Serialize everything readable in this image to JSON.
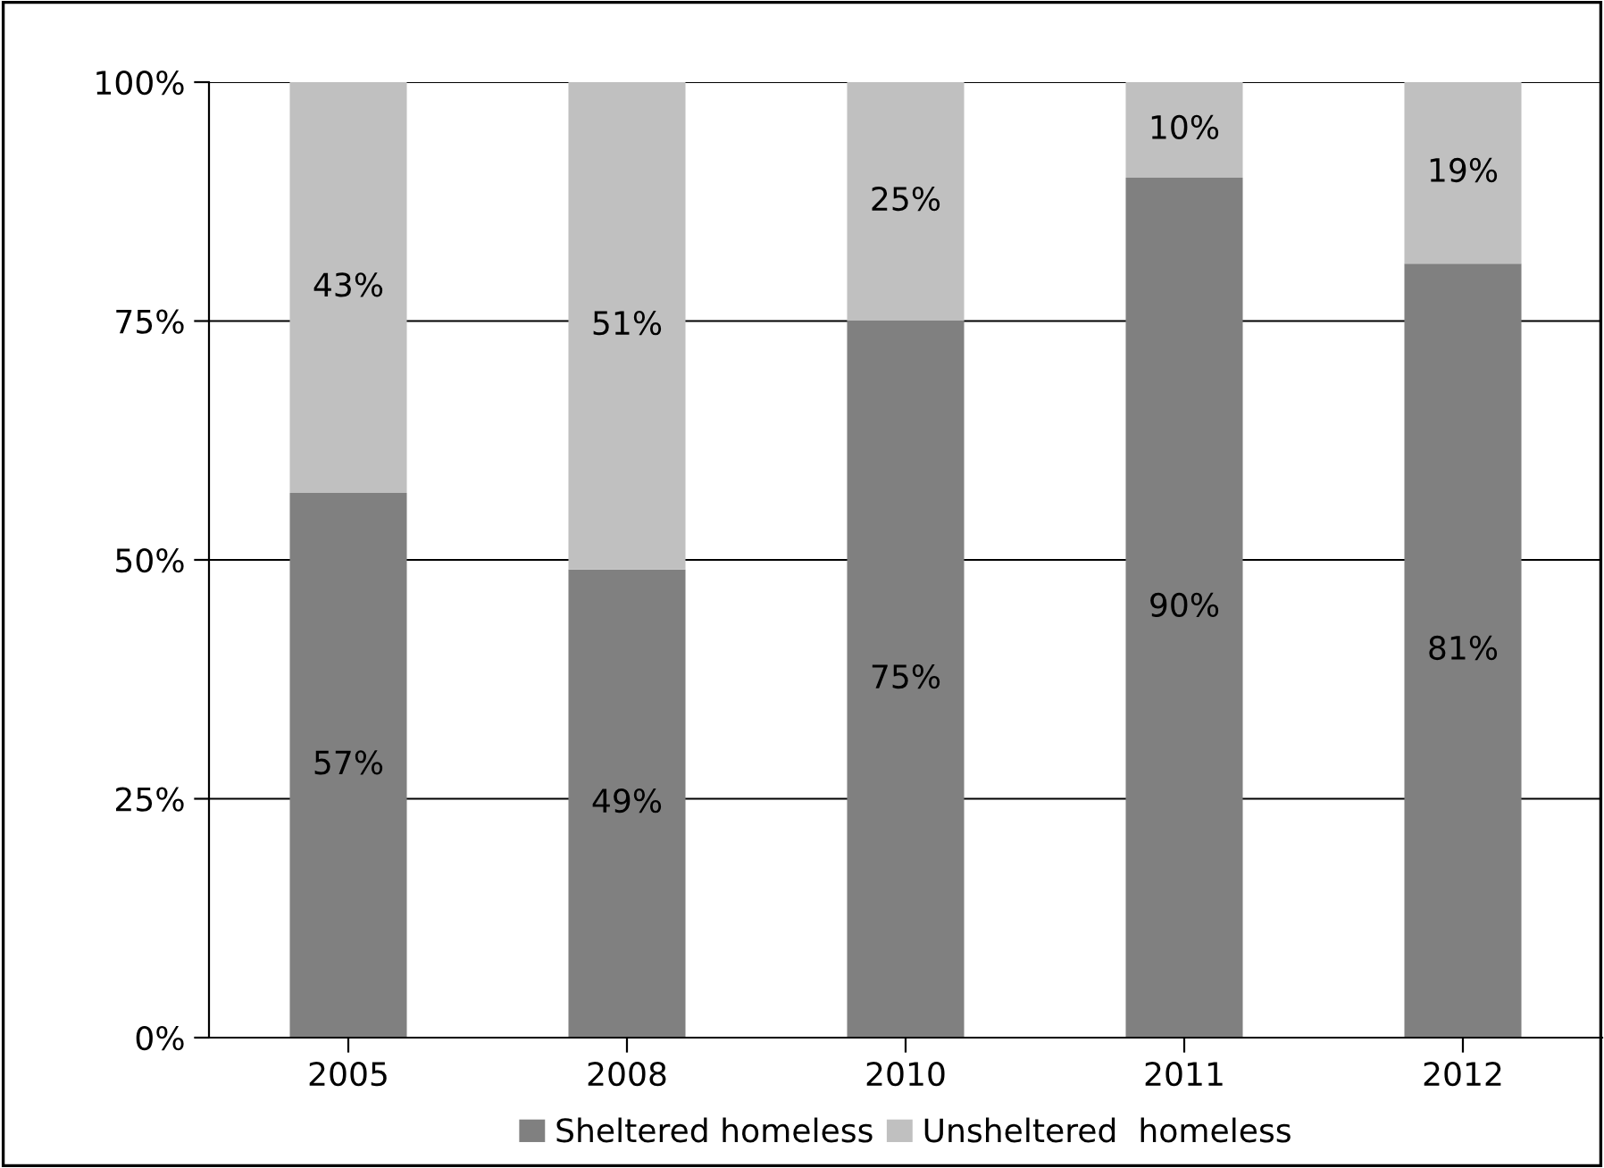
{
  "chart_data": {
    "type": "bar",
    "stacked": true,
    "categories": [
      "2005",
      "2008",
      "2010",
      "2011",
      "2012"
    ],
    "series": [
      {
        "name": "Sheltered homeless",
        "color": "#808080",
        "values": [
          57,
          49,
          75,
          90,
          81
        ],
        "value_labels": [
          "57%",
          "49%",
          "75%",
          "90%",
          "81%"
        ]
      },
      {
        "name": "Unsheltered  homeless",
        "color": "#c0c0c0",
        "values": [
          43,
          51,
          25,
          10,
          19
        ],
        "value_labels": [
          "43%",
          "51%",
          "25%",
          "10%",
          "19%"
        ]
      }
    ],
    "ylim": [
      0,
      100
    ],
    "yticks": [
      {
        "value": 0,
        "label": "0%"
      },
      {
        "value": 25,
        "label": "25%"
      },
      {
        "value": 50,
        "label": "50%"
      },
      {
        "value": 75,
        "label": "75%"
      },
      {
        "value": 100,
        "label": "100%"
      }
    ],
    "grid": "y",
    "legend": "bottom"
  }
}
